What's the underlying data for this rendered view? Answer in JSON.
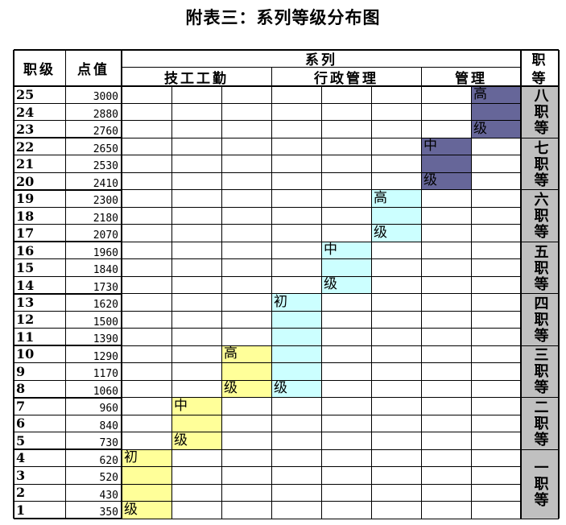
{
  "title": "附表三：系列等级分布图",
  "header": {
    "level_col": "职级",
    "points_col": "点值",
    "series_group": "系列",
    "series": [
      "技工工勤",
      "行政管理",
      "管理"
    ],
    "grade_col_line1": "职",
    "grade_col_line2": "等"
  },
  "rows": [
    {
      "level": "25",
      "points": "3000"
    },
    {
      "level": "24",
      "points": "2880"
    },
    {
      "level": "23",
      "points": "2760"
    },
    {
      "level": "22",
      "points": "2650"
    },
    {
      "level": "21",
      "points": "2530"
    },
    {
      "level": "20",
      "points": "2410"
    },
    {
      "level": "19",
      "points": "2300"
    },
    {
      "level": "18",
      "points": "2180"
    },
    {
      "level": "17",
      "points": "2070"
    },
    {
      "level": "16",
      "points": "1960"
    },
    {
      "level": "15",
      "points": "1840"
    },
    {
      "level": "14",
      "points": "1730"
    },
    {
      "level": "13",
      "points": "1620"
    },
    {
      "level": "12",
      "points": "1500"
    },
    {
      "level": "11",
      "points": "1390"
    },
    {
      "level": "10",
      "points": "1290"
    },
    {
      "level": "9",
      "points": "1170"
    },
    {
      "level": "8",
      "points": "1060"
    },
    {
      "level": "7",
      "points": "960"
    },
    {
      "level": "6",
      "points": "840"
    },
    {
      "level": "5",
      "points": "730"
    },
    {
      "level": "4",
      "points": "620"
    },
    {
      "level": "3",
      "points": "520"
    },
    {
      "level": "2",
      "points": "430"
    },
    {
      "level": "1",
      "points": "350"
    }
  ],
  "bands": [
    {
      "col": 0,
      "from_level": 1,
      "to_level": 4,
      "color": "#ffff99",
      "top_label": "初",
      "bottom_label": "级"
    },
    {
      "col": 1,
      "from_level": 5,
      "to_level": 7,
      "color": "#ffff99",
      "top_label": "中",
      "bottom_label": "级"
    },
    {
      "col": 2,
      "from_level": 8,
      "to_level": 10,
      "color": "#ffff99",
      "top_label": "高",
      "bottom_label": "级"
    },
    {
      "col": 3,
      "from_level": 8,
      "to_level": 13,
      "color": "#ccffff",
      "top_label": "初",
      "bottom_label": "级"
    },
    {
      "col": 4,
      "from_level": 14,
      "to_level": 16,
      "color": "#ccffff",
      "top_label": "中",
      "bottom_label": "级"
    },
    {
      "col": 5,
      "from_level": 17,
      "to_level": 19,
      "color": "#ccffff",
      "top_label": "高",
      "bottom_label": "级"
    },
    {
      "col": 6,
      "from_level": 20,
      "to_level": 22,
      "color": "#666699",
      "top_label": "中",
      "bottom_label": "级"
    },
    {
      "col": 7,
      "from_level": 23,
      "to_level": 25,
      "color": "#666699",
      "top_label": "高",
      "bottom_label": "级"
    }
  ],
  "grades": [
    {
      "name": "八职等",
      "from_level": 23,
      "to_level": 25
    },
    {
      "name": "七职等",
      "from_level": 20,
      "to_level": 22
    },
    {
      "name": "六职等",
      "from_level": 17,
      "to_level": 19
    },
    {
      "name": "五职等",
      "from_level": 14,
      "to_level": 16
    },
    {
      "name": "四职等",
      "from_level": 11,
      "to_level": 13
    },
    {
      "name": "三职等",
      "from_level": 8,
      "to_level": 10
    },
    {
      "name": "二职等",
      "from_level": 5,
      "to_level": 7
    },
    {
      "name": "一职等",
      "from_level": 1,
      "to_level": 4
    }
  ],
  "colors": {
    "grade_fill": "#c0c0c0"
  }
}
